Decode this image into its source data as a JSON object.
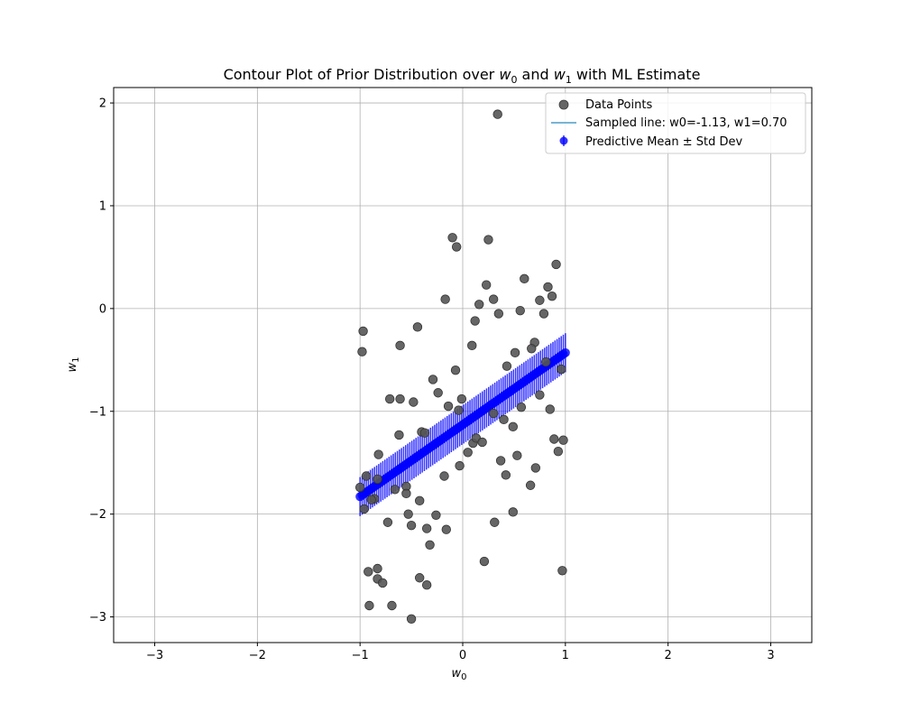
{
  "chart_data": {
    "type": "scatter",
    "title_prefix": "Contour Plot of Prior Distribution over ",
    "title_w0": "w",
    "title_w0_sub": "0",
    "title_and": " and ",
    "title_w1": "w",
    "title_w1_sub": "1",
    "title_suffix": " with ML Estimate",
    "xlabel": "w",
    "xlabel_sub": "0",
    "ylabel": "w",
    "ylabel_sub": "1",
    "xlim": [
      -3.4,
      3.4
    ],
    "ylim": [
      -3.25,
      2.15
    ],
    "xticks": [
      -3,
      -2,
      -1,
      0,
      1,
      2,
      3
    ],
    "yticks": [
      -3,
      -2,
      -1,
      0,
      1,
      2
    ],
    "xtick_labels": [
      "−3",
      "−2",
      "−1",
      "0",
      "1",
      "2",
      "3"
    ],
    "ytick_labels": [
      "−3",
      "−2",
      "−1",
      "0",
      "1",
      "2"
    ],
    "grid": true,
    "legend_position": "top-right",
    "legend": [
      {
        "label": "Data Points",
        "marker": "circle",
        "color": "#555555"
      },
      {
        "label": "Sampled line: w0=-1.13, w1=0.70",
        "marker": "line",
        "color": "#4c9bc6"
      },
      {
        "label": "Predictive Mean ± Std Dev",
        "marker": "errorbar",
        "color": "#0000ff"
      }
    ],
    "sampled_line": {
      "w0": -1.13,
      "w1": 0.7,
      "x_range": [
        -1,
        1
      ],
      "color": "#4c9bc6"
    },
    "predictive": {
      "x_range": [
        -1,
        1
      ],
      "n_points": 100,
      "mean_at_min": -1.83,
      "mean_at_max": -0.43,
      "std": 0.19,
      "color": "#0000ff"
    },
    "data_points": {
      "color": "#555555",
      "x": [
        0.34,
        -0.1,
        -0.06,
        0.25,
        0.91,
        0.6,
        0.23,
        0.83,
        -0.17,
        0.87,
        0.75,
        0.3,
        0.16,
        -0.97,
        0.12,
        0.35,
        0.56,
        0.79,
        -0.98,
        -0.44,
        -0.61,
        0.09,
        0.7,
        0.67,
        0.51,
        0.81,
        0.43,
        0.96,
        -0.07,
        -0.29,
        -0.24,
        0.75,
        -0.71,
        -0.61,
        -0.01,
        -0.48,
        0.57,
        0.85,
        -0.04,
        -0.14,
        0.3,
        0.49,
        -0.4,
        -0.37,
        -0.62,
        0.4,
        0.89,
        0.1,
        0.13,
        0.98,
        0.19,
        -0.82,
        0.05,
        0.93,
        0.53,
        -0.03,
        0.37,
        -0.94,
        -0.83,
        -0.55,
        0.71,
        0.66,
        -0.18,
        -0.66,
        -1.0,
        -0.96,
        0.42,
        -0.55,
        -0.86,
        -0.89,
        -0.53,
        -0.42,
        -0.26,
        0.49,
        -0.73,
        -0.5,
        -0.35,
        -0.16,
        0.31,
        -0.32,
        0.21,
        -0.42,
        -0.92,
        -0.83,
        -0.83,
        -0.78,
        -0.35,
        -0.91,
        -0.69,
        -0.5,
        0.97
      ],
      "y": [
        1.89,
        0.69,
        0.6,
        0.67,
        0.43,
        0.29,
        0.23,
        0.21,
        0.09,
        0.12,
        0.08,
        0.09,
        0.04,
        -0.22,
        -0.12,
        -0.05,
        -0.02,
        -0.05,
        -0.42,
        -0.18,
        -0.36,
        -0.36,
        -0.33,
        -0.39,
        -0.43,
        -0.52,
        -0.56,
        -0.59,
        -0.6,
        -0.69,
        -0.82,
        -0.84,
        -0.88,
        -0.88,
        -0.88,
        -0.91,
        -0.96,
        -0.98,
        -0.99,
        -0.95,
        -1.02,
        -1.15,
        -1.2,
        -1.21,
        -1.23,
        -1.08,
        -1.27,
        -1.31,
        -1.26,
        -1.28,
        -1.3,
        -1.42,
        -1.4,
        -1.39,
        -1.43,
        -1.53,
        -1.48,
        -1.63,
        -1.66,
        -1.73,
        -1.55,
        -1.72,
        -1.63,
        -1.76,
        -1.74,
        -1.95,
        -1.62,
        -1.8,
        -1.85,
        -1.86,
        -2.0,
        -1.87,
        -2.01,
        -1.98,
        -2.08,
        -2.11,
        -2.14,
        -2.15,
        -2.08,
        -2.3,
        -2.46,
        -2.62,
        -2.56,
        -2.53,
        -2.63,
        -2.67,
        -2.69,
        -2.89,
        -2.89,
        -3.02,
        -2.55
      ]
    }
  }
}
